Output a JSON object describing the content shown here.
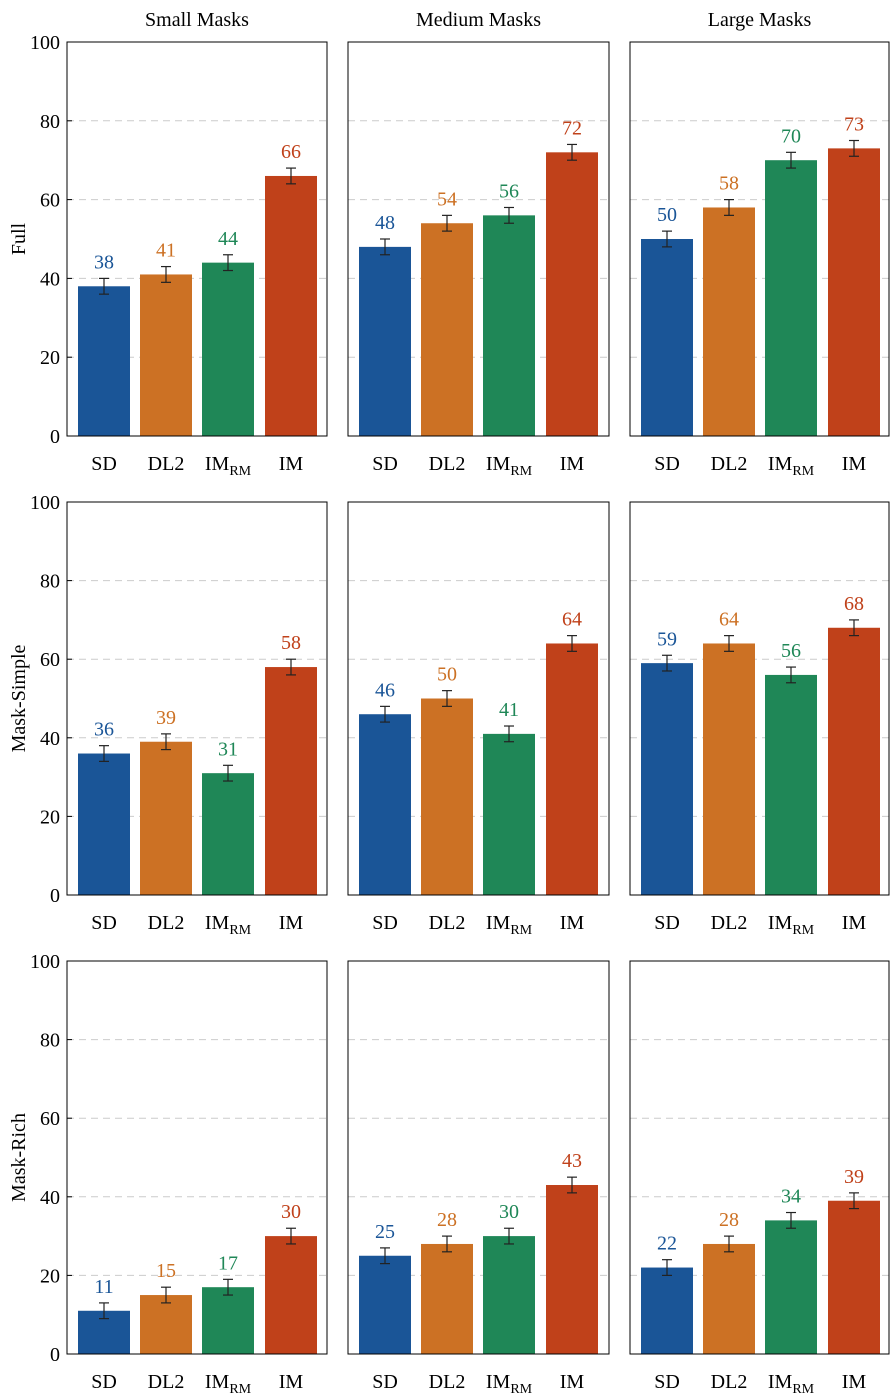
{
  "chart_data": {
    "type": "bar",
    "layout": "3x3 grid of bar charts",
    "column_titles": [
      "Small Masks",
      "Medium Masks",
      "Large Masks"
    ],
    "row_labels": [
      "Full",
      "Mask-Simple",
      "Mask-Rich"
    ],
    "categories": [
      {
        "main": "SD",
        "sub": ""
      },
      {
        "main": "DL2",
        "sub": ""
      },
      {
        "main": "IM",
        "sub": "RM"
      },
      {
        "main": "IM",
        "sub": ""
      }
    ],
    "ylim": [
      0,
      100
    ],
    "yticks": [
      0,
      20,
      40,
      60,
      80,
      100
    ],
    "grid": "horizontal dashed",
    "error_bar": 2,
    "colors": [
      "#1a5597",
      "#cc7124",
      "#1f8757",
      "#c0411a"
    ],
    "panels": [
      {
        "row": "Full",
        "column": "Small Masks",
        "values": [
          38,
          41,
          44,
          66
        ]
      },
      {
        "row": "Full",
        "column": "Medium Masks",
        "values": [
          48,
          54,
          56,
          72
        ]
      },
      {
        "row": "Full",
        "column": "Large Masks",
        "values": [
          50,
          58,
          70,
          73
        ]
      },
      {
        "row": "Mask-Simple",
        "column": "Small Masks",
        "values": [
          36,
          39,
          31,
          58
        ]
      },
      {
        "row": "Mask-Simple",
        "column": "Medium Masks",
        "values": [
          46,
          50,
          41,
          64
        ]
      },
      {
        "row": "Mask-Simple",
        "column": "Large Masks",
        "values": [
          59,
          64,
          56,
          68
        ]
      },
      {
        "row": "Mask-Rich",
        "column": "Small Masks",
        "values": [
          11,
          15,
          17,
          30
        ]
      },
      {
        "row": "Mask-Rich",
        "column": "Medium Masks",
        "values": [
          25,
          28,
          30,
          43
        ]
      },
      {
        "row": "Mask-Rich",
        "column": "Large Masks",
        "values": [
          22,
          28,
          34,
          39
        ]
      }
    ]
  }
}
